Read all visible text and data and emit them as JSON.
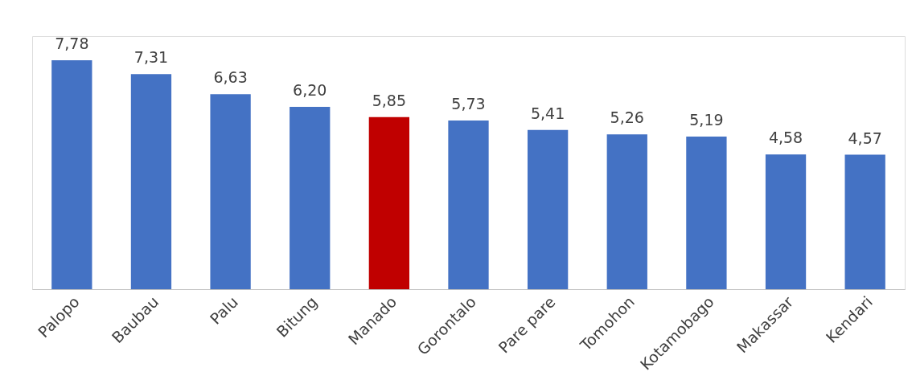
{
  "chart_data": {
    "type": "bar",
    "categories": [
      "Palopo",
      "Baubau",
      "Palu",
      "Bitung",
      "Manado",
      "Gorontalo",
      "Pare pare",
      "Tomohon",
      "Kotamobago",
      "Makassar",
      "Kendari"
    ],
    "values": [
      7.78,
      7.31,
      6.63,
      6.2,
      5.85,
      5.73,
      5.41,
      5.26,
      5.19,
      4.58,
      4.57
    ],
    "value_labels": [
      "7,78",
      "7,31",
      "6,63",
      "6,20",
      "5,85",
      "5,73",
      "5,41",
      "5,26",
      "5,19",
      "4,58",
      "4,57"
    ],
    "colors": [
      "#4472c4",
      "#4472c4",
      "#4472c4",
      "#4472c4",
      "#c00000",
      "#4472c4",
      "#4472c4",
      "#4472c4",
      "#4472c4",
      "#4472c4",
      "#4472c4"
    ],
    "ylim": [
      0,
      8.6
    ],
    "grid": false
  }
}
